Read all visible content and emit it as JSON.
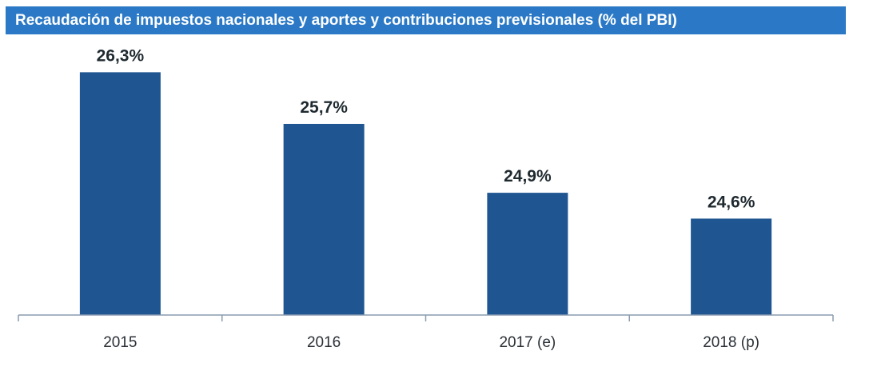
{
  "chart_data": {
    "type": "bar",
    "title": "Recaudación de impuestos nacionales y aportes y contribuciones previsionales (% del PBI)",
    "categories": [
      "2015",
      "2016",
      "2017 (e)",
      "2018 (p)"
    ],
    "values": [
      26.3,
      25.7,
      24.9,
      24.6
    ],
    "data_labels": [
      "26,3%",
      "25,7%",
      "24,9%",
      "24,6%"
    ],
    "xlabel": "",
    "ylabel": "",
    "ylim": [
      23.48,
      27.0
    ],
    "grid": false,
    "colors": {
      "bar": "#1f5591",
      "banner": "#2b79c6",
      "axis": "#8a9bb0"
    }
  }
}
